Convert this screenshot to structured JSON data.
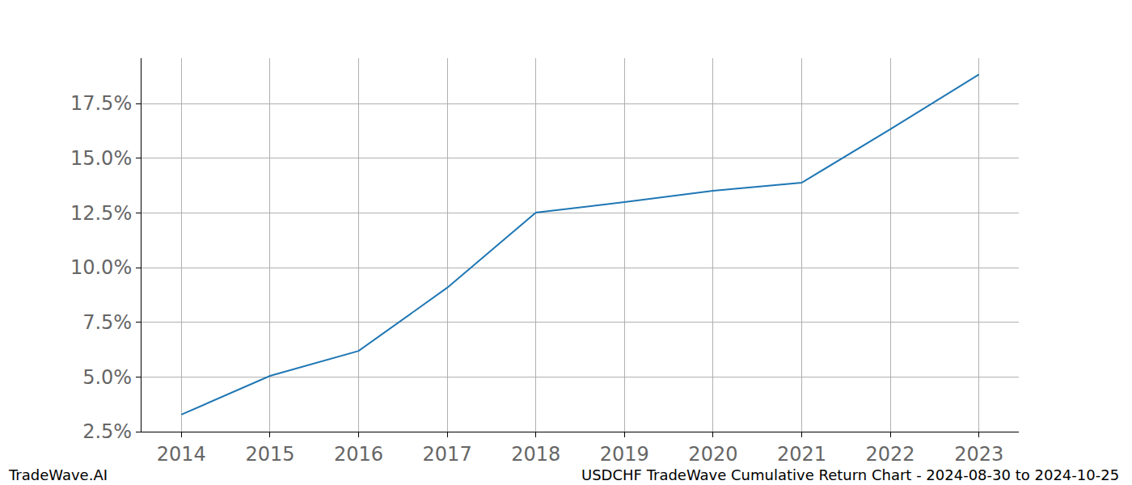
{
  "chart_data": {
    "type": "line",
    "x": [
      2014,
      2015,
      2016,
      2017,
      2018,
      2019,
      2020,
      2021,
      2022,
      2023
    ],
    "values": [
      3.28,
      5.05,
      6.19,
      9.08,
      12.51,
      12.99,
      13.51,
      13.88,
      16.32,
      18.83
    ],
    "color": "#1f77b4",
    "xlim": [
      2013.55,
      2023.45
    ],
    "xticks": [
      2014,
      2015,
      2016,
      2017,
      2018,
      2019,
      2020,
      2021,
      2022,
      2023
    ],
    "ylim": [
      2.5,
      19.57
    ],
    "yticks": [
      {
        "value": 2.5,
        "label": "2.5%"
      },
      {
        "value": 5.0,
        "label": "5.0%"
      },
      {
        "value": 7.5,
        "label": "7.5%"
      },
      {
        "value": 10.0,
        "label": "10.0%"
      },
      {
        "value": 12.5,
        "label": "12.5%"
      },
      {
        "value": 15.0,
        "label": "15.0%"
      },
      {
        "value": 17.5,
        "label": "17.5%"
      }
    ],
    "grid": true,
    "annotations": [
      "TradeWave.AI",
      "USDCHF TradeWave Cumulative Return Chart - 2024-08-30 to 2024-10-25"
    ]
  }
}
